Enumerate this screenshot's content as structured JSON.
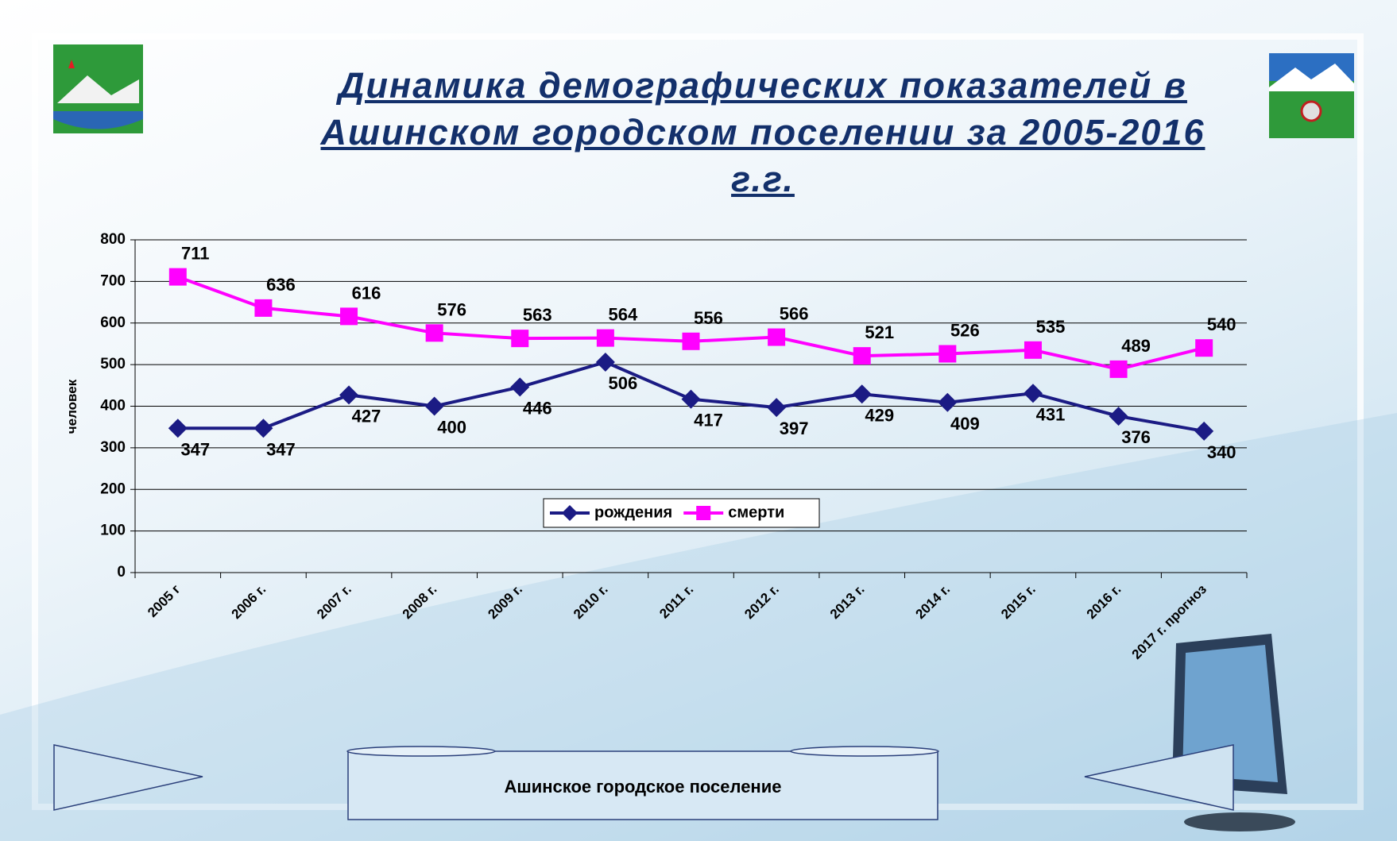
{
  "chart_data": {
    "type": "line",
    "title": "Динамика демографических показателей в Ашинском городском поселении за 2005-2016 г.г.",
    "y_label": "человек",
    "categories": [
      "2005 г",
      "2006 г.",
      "2007 г.",
      "2008 г.",
      "2009 г.",
      "2010 г.",
      "2011 г.",
      "2012 г.",
      "2013 г.",
      "2014 г.",
      "2015 г.",
      "2016 г.",
      "2017 г. прогноз"
    ],
    "series": [
      {
        "name": "рождения",
        "color": "#1b1b84",
        "marker": "diamond",
        "values": [
          347,
          347,
          427,
          400,
          446,
          506,
          417,
          397,
          429,
          409,
          431,
          376,
          340
        ]
      },
      {
        "name": "смерти",
        "color": "#ff00ff",
        "marker": "square",
        "values": [
          711,
          636,
          616,
          576,
          563,
          564,
          556,
          566,
          521,
          526,
          535,
          489,
          540
        ]
      }
    ],
    "ylim": [
      0,
      800
    ],
    "yticks": [
      0,
      100,
      200,
      300,
      400,
      500,
      600,
      700,
      800
    ],
    "grid": true
  },
  "footer": "Ашинское городское поселение"
}
